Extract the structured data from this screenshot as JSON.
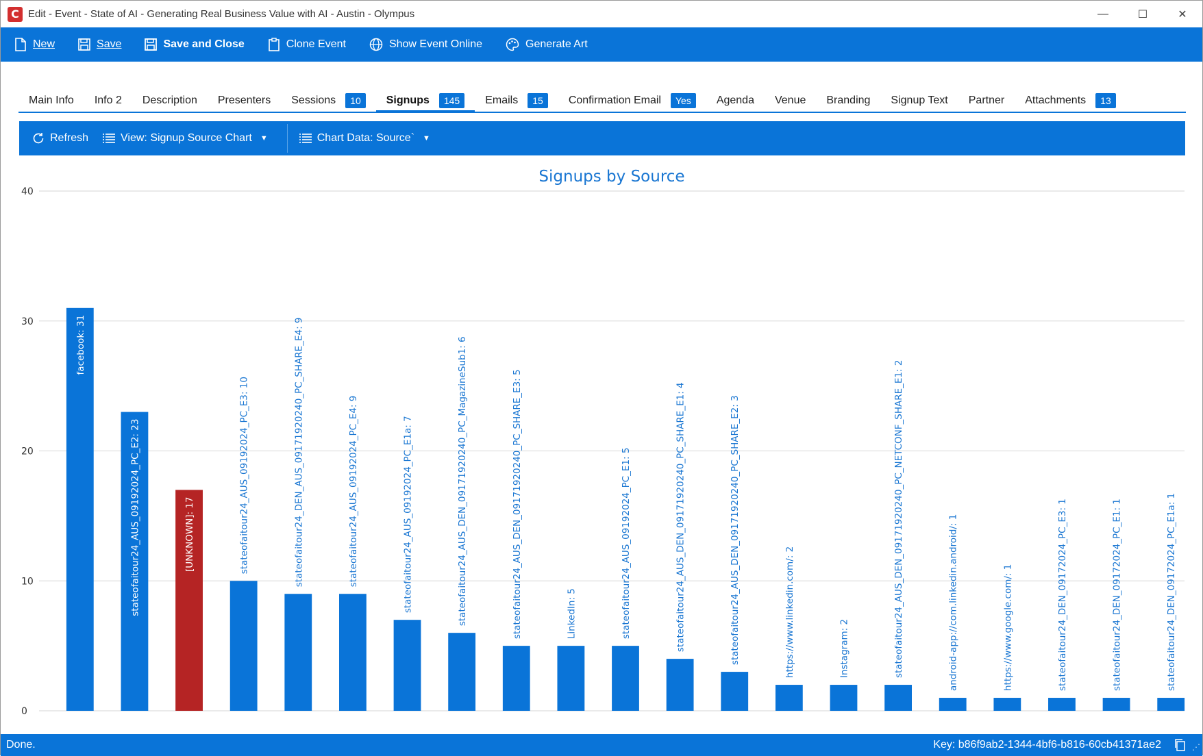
{
  "window": {
    "title": "Edit - Event - State of AI - Generating Real Business Value with AI - Austin - Olympus",
    "logo_letter": "C",
    "minimize": "—",
    "maximize": "☐",
    "close": "✕"
  },
  "toolbar": {
    "new_label": "New",
    "save_label": "Save",
    "save_close_label": "Save and Close",
    "clone_label": "Clone Event",
    "show_online_label": "Show Event Online",
    "generate_art_label": "Generate Art"
  },
  "tabs": [
    {
      "label": "Main Info"
    },
    {
      "label": "Info 2"
    },
    {
      "label": "Description"
    },
    {
      "label": "Presenters"
    },
    {
      "label": "Sessions",
      "badge": "10"
    },
    {
      "label": "Signups",
      "badge": "145",
      "active": true
    },
    {
      "label": "Emails",
      "badge": "15"
    },
    {
      "label": "Confirmation Email",
      "badge": "Yes"
    },
    {
      "label": "Agenda"
    },
    {
      "label": "Venue"
    },
    {
      "label": "Branding"
    },
    {
      "label": "Signup Text"
    },
    {
      "label": "Partner"
    },
    {
      "label": "Attachments",
      "badge": "13"
    }
  ],
  "chart_toolbar": {
    "refresh_label": "Refresh",
    "view_label": "View: Signup Source Chart",
    "chart_data_label": "Chart Data: Source`"
  },
  "chart_data": {
    "type": "bar",
    "title": "Signups by Source",
    "ylim": [
      0,
      40
    ],
    "yticks": [
      0,
      10,
      20,
      30,
      40
    ],
    "grid": true,
    "colors": {
      "default": "#0a74d8",
      "highlight": "#b52424"
    },
    "categories": [
      "facebook",
      "stateofaitour24_AUS_09192024_PC_E2",
      "[UNKNOWN]",
      "stateofaitour24_AUS_09192024_PC_E3",
      "stateofaitour24_DEN_AUS_09171920240_PC_SHARE_E4",
      "stateofaitour24_AUS_09192024_PC_E4",
      "stateofaitour24_AUS_09192024_PC_E1a",
      "stateofaitour24_AUS_DEN_09171920240_PC_MagazineSub1",
      "stateofaitour24_AUS_DEN_09171920240_PC_SHARE_E3",
      "LinkedIn",
      "stateofaitour24_AUS_09192024_PC_E1",
      "stateofaitour24_AUS_DEN_09171920240_PC_SHARE_E1",
      "stateofaitour24_AUS_DEN_09171920240_PC_SHARE_E2",
      "https://www.linkedin.com/",
      "Instagram",
      "stateofaitour24_AUS_DEN_09171920240_PC_NETCONF_SHARE_E1",
      "android-app://com.linkedin.android/",
      "https://www.google.com/",
      "stateofaitour24_DEN_09172024_PC_E3",
      "stateofaitour24_DEN_09172024_PC_E1",
      "stateofaitour24_DEN_09172024_PC_E1a"
    ],
    "values": [
      31,
      23,
      17,
      10,
      9,
      9,
      7,
      6,
      5,
      5,
      5,
      4,
      3,
      2,
      2,
      2,
      1,
      1,
      1,
      1,
      1
    ],
    "labels": [
      "facebook: 31",
      "stateofaitour24_AUS_09192024_PC_E2: 23",
      "[UNKNOWN]: 17",
      "stateofaitour24_AUS_09192024_PC_E3: 10",
      "stateofaitour24_DEN_AUS_09171920240_PC_SHARE_E4: 9",
      "stateofaitour24_AUS_09192024_PC_E4: 9",
      "stateofaitour24_AUS_09192024_PC_E1a: 7",
      "stateofaitour24_AUS_DEN_09171920240_PC_MagazineSub1: 6",
      "stateofaitour24_AUS_DEN_09171920240_PC_SHARE_E3: 5",
      "LinkedIn: 5",
      "stateofaitour24_AUS_09192024_PC_E1: 5",
      "stateofaitour24_AUS_DEN_09171920240_PC_SHARE_E1: 4",
      "stateofaitour24_AUS_DEN_09171920240_PC_SHARE_E2: 3",
      "https://www.linkedin.com/: 2",
      "Instagram: 2",
      "stateofaitour24_AUS_DEN_09171920240_PC_NETCONF_SHARE_E1: 2",
      "android-app://com.linkedin.android/: 1",
      "https://www.google.com/: 1",
      "stateofaitour24_DEN_09172024_PC_E3: 1",
      "stateofaitour24_DEN_09172024_PC_E1: 1",
      "stateofaitour24_DEN_09172024_PC_E1a: 1"
    ],
    "highlight_index": 2,
    "inside_label_indices": [
      0,
      1,
      2
    ]
  },
  "status": {
    "text": "Done.",
    "key": "Key: b86f9ab2-1344-4bf6-b816-60cb41371ae2"
  }
}
